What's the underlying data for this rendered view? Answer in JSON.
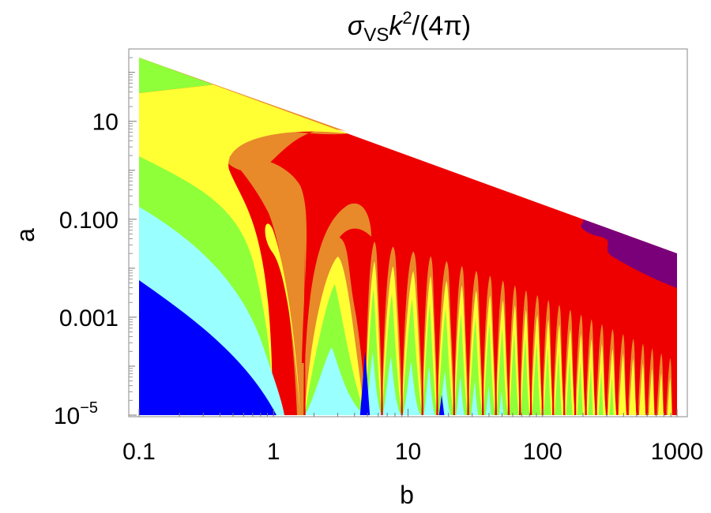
{
  "chart_data": {
    "type": "contour",
    "title": {
      "sym": "σ",
      "sub": "VS",
      "mid": "k",
      "sup": "2",
      "tail": "/(4π)"
    },
    "xlabel": "b",
    "ylabel": "a",
    "xscale": "log",
    "yscale": "log",
    "xlim": [
      0.1,
      1000
    ],
    "ylim": [
      1e-05,
      200
    ],
    "x_ticks": [
      {
        "value": 0.1,
        "label": "0.1"
      },
      {
        "value": 1,
        "label": "1"
      },
      {
        "value": 10,
        "label": "10"
      },
      {
        "value": 100,
        "label": "100"
      },
      {
        "value": 1000,
        "label": "1000"
      }
    ],
    "y_ticks": [
      {
        "value": 1e-05,
        "label": "10",
        "sup": "−5"
      },
      {
        "value": 0.001,
        "label": "0.001"
      },
      {
        "value": 0.1,
        "label": "0.100"
      },
      {
        "value": 10,
        "label": "10"
      }
    ],
    "domain_upper_boundary": [
      [
        0.1,
        200
      ],
      [
        1000,
        0.02
      ]
    ],
    "level_colors": [
      "#0000ff",
      "#99ffff",
      "#8fff3a",
      "#ffff33",
      "#e8892a",
      "#ee0000",
      "#7a007a"
    ],
    "grid": false,
    "legend": "none"
  }
}
